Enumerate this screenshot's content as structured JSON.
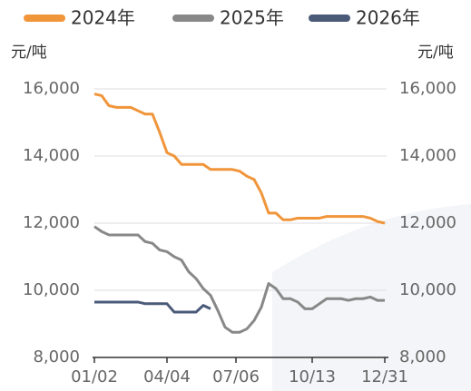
{
  "chart_data": {
    "type": "line",
    "y_unit": "元/吨",
    "x": [
      0,
      2,
      4,
      6,
      8,
      10,
      12,
      14,
      16,
      18,
      20,
      22,
      24,
      26,
      28,
      30,
      32,
      34,
      36,
      38,
      40,
      42,
      44,
      46,
      48,
      50,
      52,
      54,
      56,
      58,
      60,
      62,
      64,
      66,
      68,
      70,
      72,
      74,
      76,
      78,
      80
    ],
    "xlim": [
      0,
      80
    ],
    "xticks": [
      {
        "value": 0,
        "label": "01/02"
      },
      {
        "value": 20,
        "label": "04/04"
      },
      {
        "value": 39,
        "label": "07/06"
      },
      {
        "value": 60,
        "label": "10/13"
      },
      {
        "value": 80,
        "label": "12/31"
      }
    ],
    "ylim": [
      8000,
      16000
    ],
    "yticks": [
      {
        "value": 8000,
        "label": "8,000"
      },
      {
        "value": 10000,
        "label": "10,000"
      },
      {
        "value": 12000,
        "label": "12,000"
      },
      {
        "value": 14000,
        "label": "14,000"
      },
      {
        "value": 16000,
        "label": "16,000"
      }
    ],
    "grid": true,
    "series": [
      {
        "name": "2024年",
        "color": "#f0953a",
        "values": [
          15850,
          15800,
          15500,
          15450,
          15450,
          15450,
          15350,
          15250,
          15250,
          14700,
          14100,
          14000,
          13750,
          13750,
          13750,
          13750,
          13600,
          13600,
          13600,
          13600,
          13550,
          13400,
          13300,
          12900,
          12300,
          12300,
          12100,
          12100,
          12150,
          12150,
          12150,
          12150,
          12200,
          12200,
          12200,
          12200,
          12200,
          12200,
          12150,
          12050,
          12000
        ]
      },
      {
        "name": "2025年",
        "color": "#888888",
        "values": [
          11900,
          11750,
          11650,
          11650,
          11650,
          11650,
          11650,
          11450,
          11400,
          11200,
          11150,
          11000,
          10900,
          10550,
          10350,
          10050,
          9850,
          9400,
          8900,
          8750,
          8750,
          8850,
          9100,
          9500,
          10200,
          10050,
          9750,
          9750,
          9650,
          9450,
          9450,
          9600,
          9750,
          9750,
          9750,
          9700,
          9750,
          9750,
          9800,
          9700,
          9700
        ]
      },
      {
        "name": "2026年",
        "color": "#4a5a78",
        "values": [
          9650,
          9650,
          9650,
          9650,
          9650,
          9650,
          9650,
          9600,
          9600,
          9600,
          9600,
          9350,
          9350,
          9350,
          9350,
          9550,
          9450,
          null,
          null,
          null,
          null,
          null,
          null,
          null,
          null,
          null,
          null,
          null,
          null,
          null,
          null,
          null,
          null,
          null,
          null,
          null,
          null,
          null,
          null,
          null,
          null
        ]
      }
    ]
  }
}
